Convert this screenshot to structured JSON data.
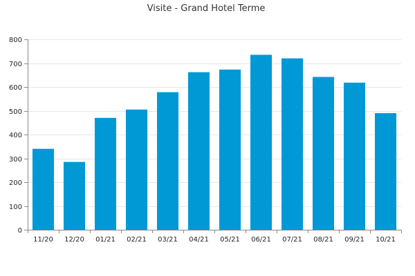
{
  "chart_data": {
    "type": "bar",
    "title": "Visite - Grand Hotel Terme",
    "xlabel": "",
    "ylabel": "",
    "categories": [
      "11/20",
      "12/20",
      "01/21",
      "02/21",
      "03/21",
      "04/21",
      "05/21",
      "06/21",
      "07/21",
      "08/21",
      "09/21",
      "10/21"
    ],
    "values": [
      340,
      285,
      470,
      505,
      578,
      662,
      673,
      735,
      720,
      642,
      618,
      490
    ],
    "ylim": [
      0,
      800
    ],
    "yticks": [
      0,
      100,
      200,
      300,
      400,
      500,
      600,
      700,
      800
    ],
    "grid": true,
    "legend": "none",
    "bar_color": "#0099d6"
  }
}
